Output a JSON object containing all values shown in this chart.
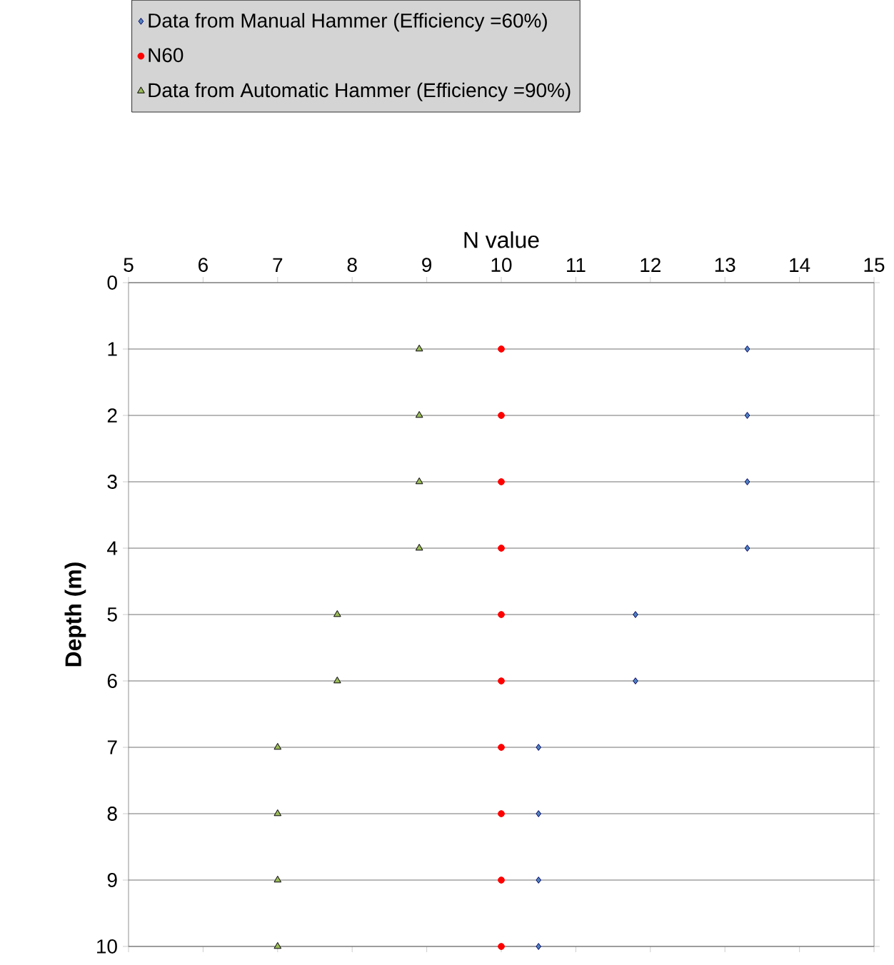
{
  "chart_data": {
    "type": "scatter",
    "xlabel": "N value",
    "ylabel": "Depth (m)",
    "xlim": [
      5,
      15
    ],
    "xticks": [
      5,
      6,
      7,
      8,
      9,
      10,
      11,
      12,
      13,
      14,
      15
    ],
    "ylim": [
      10,
      0
    ],
    "yticks": [
      0,
      1,
      2,
      3,
      4,
      5,
      6,
      7,
      8,
      9,
      10
    ],
    "grid": "y",
    "legend": "top",
    "series": [
      {
        "name": "Data from Manual Hammer (Efficiency =60%)",
        "color": "#4f81bd",
        "marker": "diamond",
        "x": [
          13.3,
          13.3,
          13.3,
          13.3,
          11.8,
          11.8,
          10.5,
          10.5,
          10.5,
          10.5
        ],
        "values": [
          1,
          2,
          3,
          4,
          5,
          6,
          7,
          8,
          9,
          10
        ]
      },
      {
        "name": "N60",
        "color": "#ff0000",
        "marker": "circle",
        "x": [
          10,
          10,
          10,
          10,
          10,
          10,
          10,
          10,
          10,
          10
        ],
        "values": [
          1,
          2,
          3,
          4,
          5,
          6,
          7,
          8,
          9,
          10
        ]
      },
      {
        "name": "Data from Automatic Hammer (Efficiency =90%)",
        "color": "#9bbb59",
        "marker": "triangle",
        "x": [
          8.9,
          8.9,
          8.9,
          8.9,
          7.8,
          7.8,
          7.0,
          7.0,
          7.0,
          7.0
        ],
        "values": [
          1,
          2,
          3,
          4,
          5,
          6,
          7,
          8,
          9,
          10
        ]
      }
    ]
  }
}
